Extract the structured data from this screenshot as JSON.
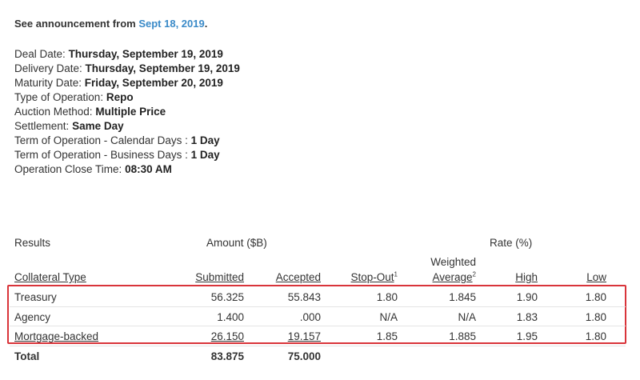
{
  "announcement": {
    "prefix": "See announcement from",
    "link": "Sept 18, 2019",
    "suffix": "."
  },
  "details": [
    {
      "label": "Deal Date:",
      "value": "Thursday, September 19, 2019"
    },
    {
      "label": "Delivery Date:",
      "value": "Thursday, September 19, 2019"
    },
    {
      "label": "Maturity Date:",
      "value": "Friday, September 20, 2019"
    },
    {
      "label": "Type of Operation:",
      "value": "Repo"
    },
    {
      "label": "Auction Method:",
      "value": "Multiple Price"
    },
    {
      "label": "Settlement:",
      "value": "Same Day"
    },
    {
      "label": "Term of Operation - Calendar Days :",
      "value": "1 Day"
    },
    {
      "label": "Term of Operation - Business Days :",
      "value": "1 Day"
    },
    {
      "label": "Operation Close Time:",
      "value": "08:30 AM"
    }
  ],
  "table": {
    "group_headers": {
      "results": "Results",
      "amount": "Amount ($B)",
      "rate": "Rate (%)"
    },
    "columns": {
      "collateral": "Collateral Type",
      "submitted": "Submitted",
      "accepted": "Accepted",
      "stopout": "Stop-Out",
      "stopout_note": "1",
      "weighted_top": "Weighted",
      "weighted_bottom": "Average",
      "weighted_note": "2",
      "high": "High",
      "low": "Low"
    },
    "rows": [
      {
        "type": "Treasury",
        "submitted": "56.325",
        "accepted": "55.843",
        "stopout": "1.80",
        "weighted": "1.845",
        "high": "1.90",
        "low": "1.80"
      },
      {
        "type": "Agency",
        "submitted": "1.400",
        "accepted": ".000",
        "stopout": "N/A",
        "weighted": "N/A",
        "high": "1.83",
        "low": "1.80"
      },
      {
        "type": "Mortgage-backed",
        "submitted": "26.150",
        "accepted": "19.157",
        "stopout": "1.85",
        "weighted": "1.885",
        "high": "1.95",
        "low": "1.80"
      }
    ],
    "total": {
      "label": "Total",
      "submitted": "83.875",
      "accepted": "75.000"
    },
    "highlight_color": "#d9343a"
  }
}
